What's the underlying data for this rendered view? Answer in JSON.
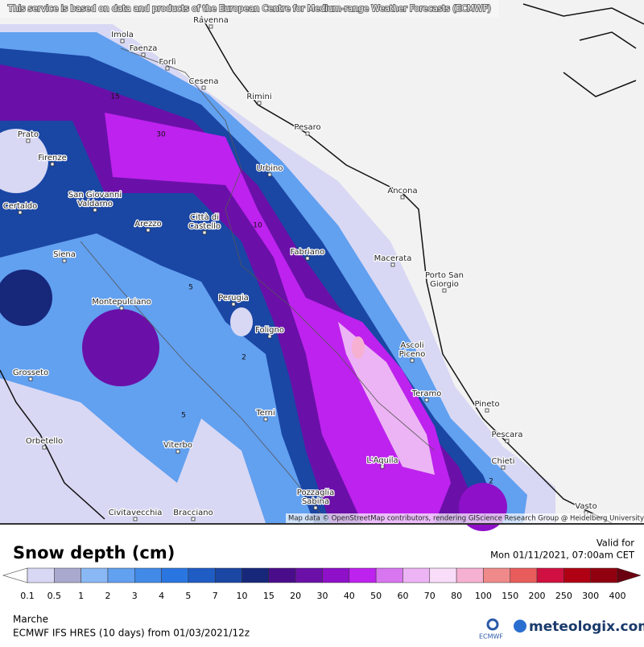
{
  "banner": "This service is based on data and products of the European Centre for Medium-range Weather Forecasts (ECMWF)",
  "attribution": "Map data © OpenStreetMap contributors, rendering GIScience Research Group @ Heidelberg University",
  "cities": [
    {
      "label": [
        "Ravenna"
      ]
    },
    {
      "label": [
        "Imola"
      ]
    },
    {
      "label": [
        "Faenza"
      ]
    },
    {
      "label": [
        "Forlì"
      ]
    },
    {
      "label": [
        "Cesena"
      ]
    },
    {
      "label": [
        "Rimini"
      ]
    },
    {
      "label": [
        "Pesaro"
      ]
    },
    {
      "label": [
        "Prato"
      ]
    },
    {
      "label": [
        "Firenze"
      ]
    },
    {
      "label": [
        "Urbino"
      ]
    },
    {
      "label": [
        "Ancona"
      ]
    },
    {
      "label": [
        "San Giovanni",
        "Valdarno"
      ]
    },
    {
      "label": [
        "Certaldo"
      ]
    },
    {
      "label": [
        "Arezzo"
      ]
    },
    {
      "label": [
        "Città di",
        "Castello"
      ]
    },
    {
      "label": [
        "Siena"
      ]
    },
    {
      "label": [
        "Fabriano"
      ]
    },
    {
      "label": [
        "Macerata"
      ]
    },
    {
      "label": [
        "Porto San",
        "Giorgio"
      ]
    },
    {
      "label": [
        "Montepulciano"
      ]
    },
    {
      "label": [
        "Perugia"
      ]
    },
    {
      "label": [
        "Foligno"
      ]
    },
    {
      "label": [
        "Ascoli",
        "Piceno"
      ]
    },
    {
      "label": [
        "Grosseto"
      ]
    },
    {
      "label": [
        "Teramo"
      ]
    },
    {
      "label": [
        "Pineto"
      ]
    },
    {
      "label": [
        "Terni"
      ]
    },
    {
      "label": [
        "Pescara"
      ]
    },
    {
      "label": [
        "Orbetello"
      ]
    },
    {
      "label": [
        "Viterbo"
      ]
    },
    {
      "label": [
        "L'Aquila"
      ]
    },
    {
      "label": [
        "Chieti"
      ]
    },
    {
      "label": [
        "Pozzaglia",
        "Sabina"
      ]
    },
    {
      "label": [
        "Civitavecchia"
      ]
    },
    {
      "label": [
        "Bracciano"
      ]
    },
    {
      "label": [
        "Vasto"
      ]
    }
  ],
  "contour_labels": [
    30,
    15,
    10,
    5,
    2,
    5,
    2
  ],
  "title": "Snow depth (cm)",
  "valid_label": "Valid for",
  "valid_time": "Mon 01/11/2021, 07:00am CET",
  "legend": [
    {
      "value": 0.1,
      "color": "#d8d8f4"
    },
    {
      "value": 0.5,
      "color": "#a9a9cf"
    },
    {
      "value": 1,
      "color": "#8ab8f4"
    },
    {
      "value": 2,
      "color": "#62a0f0"
    },
    {
      "value": 3,
      "color": "#418ae8"
    },
    {
      "value": 4,
      "color": "#2a76e0"
    },
    {
      "value": 5,
      "color": "#1f5cc4"
    },
    {
      "value": 7,
      "color": "#1a46a4"
    },
    {
      "value": 10,
      "color": "#17277a"
    },
    {
      "value": 15,
      "color": "#4a0d8a"
    },
    {
      "value": 20,
      "color": "#6a10a8"
    },
    {
      "value": 30,
      "color": "#8e10c8"
    },
    {
      "value": 40,
      "color": "#be22ee"
    },
    {
      "value": 50,
      "color": "#d876f0"
    },
    {
      "value": 60,
      "color": "#ecb4f4"
    },
    {
      "value": 70,
      "color": "#f8dcf8"
    },
    {
      "value": 80,
      "color": "#f6b0d2"
    },
    {
      "value": 100,
      "color": "#f08a8a"
    },
    {
      "value": 150,
      "color": "#e85c5c"
    },
    {
      "value": 200,
      "color": "#d01040"
    },
    {
      "value": 250,
      "color": "#b00014"
    },
    {
      "value": 300,
      "color": "#90000f"
    },
    {
      "value": 400,
      "color": "#6a0010"
    }
  ],
  "region": "Marche",
  "model": "ECMWF IFS HRES (10 days) from 01/03/2021/12z",
  "ecmwf_logo": "ECMWF",
  "brand": "meteologix.com"
}
